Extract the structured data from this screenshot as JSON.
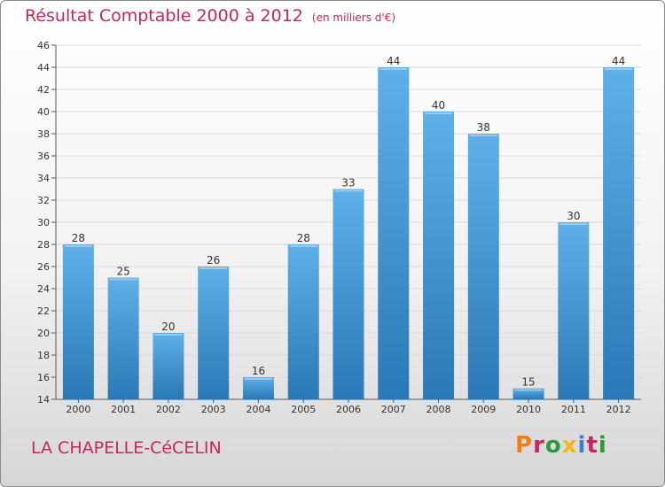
{
  "header": {
    "title": "Résultat Comptable 2000 à 2012",
    "subtitle": "(en milliers d'€)"
  },
  "footer": {
    "commune": "LA CHAPELLE-CéCELIN",
    "logo_text": "Proxiti"
  },
  "colors": {
    "accent": "#c8265a",
    "bar_top": "#5eb0ea",
    "bar_bottom": "#2a78b5",
    "logo_letters": [
      "#f07f1a",
      "#c8265a",
      "#2a9a3a",
      "#f0b81a",
      "#3a7fd0",
      "#c8265a",
      "#2a9a3a"
    ]
  },
  "chart_data": {
    "type": "bar",
    "title": "Résultat Comptable 2000 à 2012",
    "subtitle": "(en milliers d'€)",
    "categories": [
      "2000",
      "2001",
      "2002",
      "2003",
      "2004",
      "2005",
      "2006",
      "2007",
      "2008",
      "2009",
      "2010",
      "2011",
      "2012"
    ],
    "values": [
      28,
      25,
      20,
      26,
      16,
      28,
      33,
      44,
      40,
      38,
      15,
      30,
      44
    ],
    "value_labels": [
      "28",
      "25",
      "20",
      "26",
      "16",
      "28",
      "33",
      "44",
      "40",
      "38",
      "15",
      "30",
      "44"
    ],
    "yticks": [
      "14",
      "16",
      "18",
      "20",
      "22",
      "24",
      "26",
      "28",
      "30",
      "32",
      "34",
      "36",
      "38",
      "40",
      "42",
      "44",
      "46"
    ],
    "ylim": [
      14,
      46
    ],
    "xlabel": "",
    "ylabel": "",
    "grid": true,
    "legend": false
  }
}
